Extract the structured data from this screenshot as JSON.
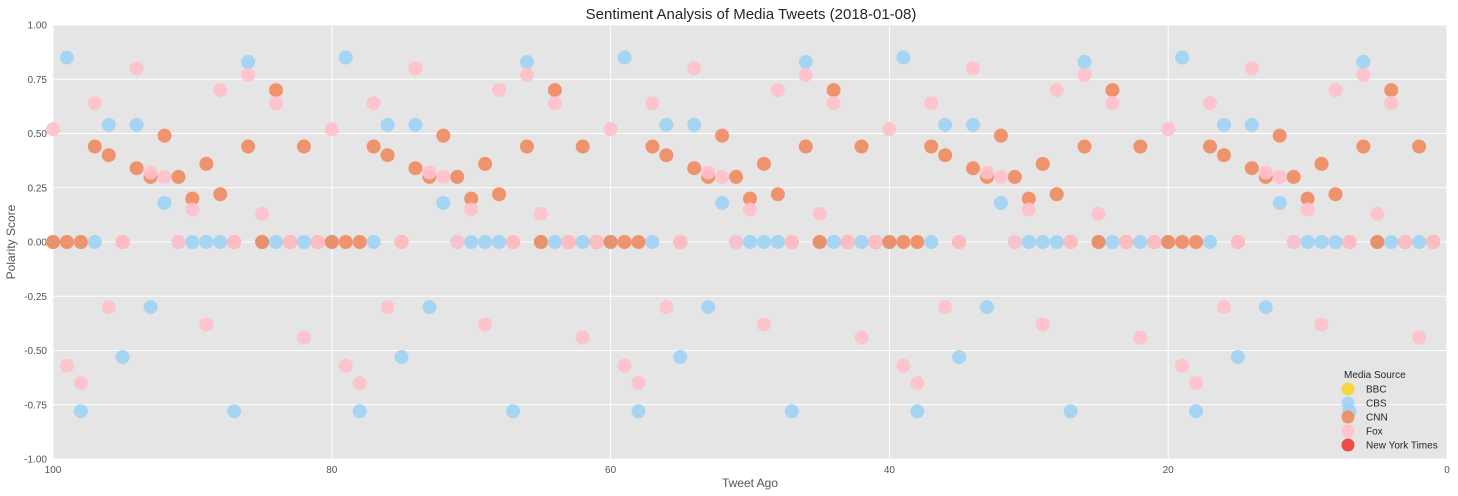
{
  "chart_data": {
    "type": "scatter",
    "title": "Sentiment Analysis of Media Tweets (2018-01-08)",
    "xlabel": "Tweet Ago",
    "ylabel": "Polarity Score",
    "xlim": [
      100,
      0
    ],
    "ylim": [
      -1.0,
      1.0
    ],
    "xticks": [
      100,
      80,
      60,
      40,
      20,
      0
    ],
    "yticks": [
      1.0,
      0.75,
      0.5,
      0.25,
      0.0,
      -0.25,
      -0.5,
      -0.75,
      -1.0
    ],
    "grid": true,
    "legend": {
      "title": "Media Source",
      "placement": "lower-right"
    },
    "series": [
      {
        "name": "BBC",
        "color": "#f5d42a",
        "x": [],
        "y": []
      },
      {
        "name": "CBS",
        "color": "#9fd3f5",
        "x": [
          100,
          99,
          98,
          97,
          96,
          95,
          94,
          93,
          92,
          91,
          90,
          89,
          88,
          87,
          86,
          85,
          84,
          83,
          82,
          81,
          80,
          79,
          78,
          77,
          76,
          75,
          74,
          73,
          72,
          71,
          70,
          69,
          68,
          67,
          66,
          65,
          64,
          63,
          62,
          61,
          60,
          59,
          58,
          57,
          56,
          55,
          54,
          53,
          52,
          51,
          50,
          49,
          48,
          47,
          46,
          45,
          44,
          43,
          42,
          41,
          40,
          39,
          38,
          37,
          36,
          35,
          34,
          33,
          32,
          31,
          30,
          29,
          28,
          27,
          26,
          25,
          24,
          23,
          22,
          21,
          20,
          19,
          18,
          17,
          16,
          15,
          14,
          13,
          12,
          11,
          10,
          9,
          8,
          7,
          6,
          5,
          4,
          3,
          2,
          1
        ],
        "y": [
          0,
          0.85,
          -0.78,
          0,
          0.54,
          -0.53,
          0.54,
          -0.3,
          0.18,
          0,
          0,
          0,
          0,
          -0.78,
          0.83,
          0,
          0,
          0,
          0,
          0,
          0,
          0.85,
          -0.78,
          0,
          0.54,
          -0.53,
          0.54,
          -0.3,
          0.18,
          0,
          0,
          0,
          0,
          -0.78,
          0.83,
          0,
          0,
          0,
          0,
          0,
          0,
          0.85,
          -0.78,
          0,
          0.54,
          -0.53,
          0.54,
          -0.3,
          0.18,
          0,
          0,
          0,
          0,
          -0.78,
          0.83,
          0,
          0,
          0,
          0,
          0,
          0,
          0.85,
          -0.78,
          0,
          0.54,
          -0.53,
          0.54,
          -0.3,
          0.18,
          0,
          0,
          0,
          0,
          -0.78,
          0.83,
          0,
          0,
          0,
          0,
          0,
          0,
          0.85,
          -0.78,
          0,
          0.54,
          -0.53,
          0.54,
          -0.3,
          0.18,
          0,
          0,
          0,
          0,
          -0.78,
          0.83,
          0,
          0,
          0,
          0,
          0
        ]
      },
      {
        "name": "CNN",
        "color": "#ef8a5e",
        "x": [
          100,
          99,
          98,
          97,
          96,
          95,
          94,
          93,
          92,
          91,
          90,
          89,
          88,
          87,
          86,
          85,
          84,
          83,
          82,
          81,
          80,
          79,
          78,
          77,
          76,
          75,
          74,
          73,
          72,
          71,
          70,
          69,
          68,
          67,
          66,
          65,
          64,
          63,
          62,
          61,
          60,
          59,
          58,
          57,
          56,
          55,
          54,
          53,
          52,
          51,
          50,
          49,
          48,
          47,
          46,
          45,
          44,
          43,
          42,
          41,
          40,
          39,
          38,
          37,
          36,
          35,
          34,
          33,
          32,
          31,
          30,
          29,
          28,
          27,
          26,
          25,
          24,
          23,
          22,
          21,
          20,
          19,
          18,
          17,
          16,
          15,
          14,
          13,
          12,
          11,
          10,
          9,
          8,
          7,
          6,
          5,
          4,
          3,
          2,
          1
        ],
        "y": [
          0,
          0,
          0,
          0.44,
          0.4,
          0,
          0.34,
          0.3,
          0.49,
          0.3,
          0.2,
          0.36,
          0.22,
          0,
          0.44,
          0,
          0.7,
          0,
          0.44,
          0,
          0,
          0,
          0,
          0.44,
          0.4,
          0,
          0.34,
          0.3,
          0.49,
          0.3,
          0.2,
          0.36,
          0.22,
          0,
          0.44,
          0,
          0.7,
          0,
          0.44,
          0,
          0,
          0,
          0,
          0.44,
          0.4,
          0,
          0.34,
          0.3,
          0.49,
          0.3,
          0.2,
          0.36,
          0.22,
          0,
          0.44,
          0,
          0.7,
          0,
          0.44,
          0,
          0,
          0,
          0,
          0.44,
          0.4,
          0,
          0.34,
          0.3,
          0.49,
          0.3,
          0.2,
          0.36,
          0.22,
          0,
          0.44,
          0,
          0.7,
          0,
          0.44,
          0,
          0,
          0,
          0,
          0.44,
          0.4,
          0,
          0.34,
          0.3,
          0.49,
          0.3,
          0.2,
          0.36,
          0.22,
          0,
          0.44,
          0,
          0.7,
          0,
          0.44,
          0
        ]
      },
      {
        "name": "Fox",
        "color": "#ffc0cb",
        "x": [
          100,
          99,
          98,
          97,
          96,
          95,
          94,
          93,
          92,
          91,
          90,
          89,
          88,
          87,
          86,
          85,
          84,
          83,
          82,
          81,
          80,
          79,
          78,
          77,
          76,
          75,
          74,
          73,
          72,
          71,
          70,
          69,
          68,
          67,
          66,
          65,
          64,
          63,
          62,
          61,
          60,
          59,
          58,
          57,
          56,
          55,
          54,
          53,
          52,
          51,
          50,
          49,
          48,
          47,
          46,
          45,
          44,
          43,
          42,
          41,
          40,
          39,
          38,
          37,
          36,
          35,
          34,
          33,
          32,
          31,
          30,
          29,
          28,
          27,
          26,
          25,
          24,
          23,
          22,
          21,
          20,
          19,
          18,
          17,
          16,
          15,
          14,
          13,
          12,
          11,
          10,
          9,
          8,
          7,
          6,
          5,
          4,
          3,
          2,
          1
        ],
        "y": [
          0.52,
          -0.57,
          -0.65,
          0.64,
          -0.3,
          0,
          0.8,
          0.32,
          0.3,
          0,
          0.15,
          -0.38,
          0.7,
          0,
          0.77,
          0.13,
          0.64,
          0,
          -0.44,
          0,
          0.52,
          -0.57,
          -0.65,
          0.64,
          -0.3,
          0,
          0.8,
          0.32,
          0.3,
          0,
          0.15,
          -0.38,
          0.7,
          0,
          0.77,
          0.13,
          0.64,
          0,
          -0.44,
          0,
          0.52,
          -0.57,
          -0.65,
          0.64,
          -0.3,
          0,
          0.8,
          0.32,
          0.3,
          0,
          0.15,
          -0.38,
          0.7,
          0,
          0.77,
          0.13,
          0.64,
          0,
          -0.44,
          0,
          0.52,
          -0.57,
          -0.65,
          0.64,
          -0.3,
          0,
          0.8,
          0.32,
          0.3,
          0,
          0.15,
          -0.38,
          0.7,
          0,
          0.77,
          0.13,
          0.64,
          0,
          -0.44,
          0,
          0.52,
          -0.57,
          -0.65,
          0.64,
          -0.3,
          0,
          0.8,
          0.32,
          0.3,
          0,
          0.15,
          -0.38,
          0.7,
          0,
          0.77,
          0.13,
          0.64,
          0,
          -0.44,
          0
        ]
      },
      {
        "name": "New York Times",
        "color": "#f03a3a",
        "x": [],
        "y": []
      }
    ]
  }
}
